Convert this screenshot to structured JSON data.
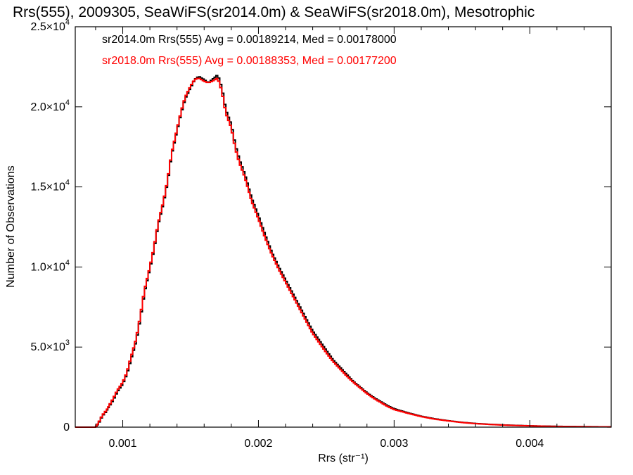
{
  "chart_data": {
    "type": "line",
    "title": "Rrs(555), 2009305, SeaWiFS(sr2014.0m) & SeaWiFS(sr2018.0m), Mesotrophic",
    "xlabel": "Rrs (str⁻¹)",
    "ylabel": "Number of Observations",
    "xlim": [
      0.00065,
      0.0046
    ],
    "ylim": [
      0,
      25000
    ],
    "x_ticks": [
      0.001,
      0.002,
      0.003,
      0.004
    ],
    "x_tick_labels": [
      "0.001",
      "0.002",
      "0.003",
      "0.004"
    ],
    "y_ticks": [
      0,
      5000,
      10000,
      15000,
      20000,
      25000
    ],
    "y_tick_labels": [
      {
        "mantissa": "0",
        "exp": ""
      },
      {
        "mantissa": "5.0×10",
        "exp": "3"
      },
      {
        "mantissa": "1.0×10",
        "exp": "4"
      },
      {
        "mantissa": "1.5×10",
        "exp": "4"
      },
      {
        "mantissa": "2.0×10",
        "exp": "4"
      },
      {
        "mantissa": "2.5×10",
        "exp": "4"
      }
    ],
    "grid": false,
    "legend_position": "top-left",
    "series": [
      {
        "name": "sr2014.0m",
        "color": "#000000",
        "legend_text": "sr2014.0m Rrs(555) Avg = 0.00189214, Med = 0.00178000",
        "x": [
          0.00065,
          0.0008,
          0.00082,
          0.00085,
          0.00088,
          0.0009,
          0.00093,
          0.00096,
          0.001,
          0.00103,
          0.00106,
          0.0011,
          0.00113,
          0.00116,
          0.0012,
          0.00123,
          0.00126,
          0.0013,
          0.00133,
          0.00136,
          0.0014,
          0.00143,
          0.00146,
          0.0015,
          0.00153,
          0.00156,
          0.0016,
          0.00163,
          0.00166,
          0.0017,
          0.00173,
          0.00176,
          0.0018,
          0.00183,
          0.00186,
          0.0019,
          0.00195,
          0.002,
          0.00205,
          0.0021,
          0.00215,
          0.0022,
          0.00225,
          0.0023,
          0.00235,
          0.0024,
          0.00245,
          0.0025,
          0.00255,
          0.0026,
          0.00265,
          0.0027,
          0.00275,
          0.0028,
          0.00285,
          0.0029,
          0.00295,
          0.003,
          0.0031,
          0.0032,
          0.0033,
          0.0034,
          0.0035,
          0.0036,
          0.0037,
          0.0038,
          0.0039,
          0.004,
          0.0041,
          0.0042,
          0.0043,
          0.0044,
          0.0045,
          0.0046
        ],
        "y": [
          0,
          0,
          200,
          700,
          1000,
          1300,
          1700,
          2200,
          2700,
          3300,
          4200,
          5400,
          6800,
          8400,
          9900,
          11100,
          12600,
          14000,
          15300,
          17000,
          18500,
          19600,
          20500,
          21200,
          21700,
          21900,
          21700,
          21500,
          21700,
          22000,
          21200,
          19800,
          18900,
          17600,
          16700,
          15800,
          14300,
          13200,
          12000,
          10900,
          10000,
          9200,
          8400,
          7600,
          6800,
          6000,
          5400,
          4800,
          4200,
          3750,
          3300,
          2850,
          2500,
          2150,
          1850,
          1600,
          1350,
          1150,
          900,
          680,
          520,
          400,
          300,
          230,
          180,
          140,
          110,
          85,
          65,
          50,
          40,
          30,
          25,
          20
        ]
      },
      {
        "name": "sr2018.0m",
        "color": "#ff0000",
        "legend_text": "sr2018.0m Rrs(555) Avg = 0.00188353, Med = 0.00177200",
        "x": [
          0.00065,
          0.0008,
          0.00082,
          0.00085,
          0.00088,
          0.0009,
          0.00093,
          0.00096,
          0.001,
          0.00103,
          0.00106,
          0.0011,
          0.00113,
          0.00116,
          0.0012,
          0.00123,
          0.00126,
          0.0013,
          0.00133,
          0.00136,
          0.0014,
          0.00143,
          0.00146,
          0.0015,
          0.00153,
          0.00156,
          0.0016,
          0.00163,
          0.00166,
          0.0017,
          0.00173,
          0.00176,
          0.0018,
          0.00183,
          0.00186,
          0.0019,
          0.00195,
          0.002,
          0.00205,
          0.0021,
          0.00215,
          0.0022,
          0.00225,
          0.0023,
          0.00235,
          0.0024,
          0.00245,
          0.0025,
          0.00255,
          0.0026,
          0.00265,
          0.0027,
          0.00275,
          0.0028,
          0.00285,
          0.0029,
          0.00295,
          0.003,
          0.0031,
          0.0032,
          0.0033,
          0.0034,
          0.0035,
          0.0036,
          0.0037,
          0.0038,
          0.0039,
          0.004,
          0.0041,
          0.0042,
          0.0043,
          0.0044,
          0.0045,
          0.0046
        ],
        "y": [
          0,
          0,
          250,
          750,
          1050,
          1350,
          1800,
          2300,
          2800,
          3400,
          4350,
          5550,
          6950,
          8550,
          10000,
          11200,
          12700,
          14100,
          15400,
          17100,
          18600,
          19700,
          20600,
          21300,
          21700,
          21800,
          21600,
          21500,
          21600,
          21800,
          21000,
          19600,
          18700,
          17400,
          16500,
          15600,
          14100,
          13000,
          11800,
          10750,
          9850,
          9050,
          8250,
          7450,
          6650,
          5850,
          5250,
          4650,
          4100,
          3650,
          3200,
          2800,
          2450,
          2100,
          1800,
          1550,
          1300,
          1100,
          870,
          660,
          500,
          390,
          290,
          220,
          170,
          130,
          100,
          80,
          60,
          45,
          35,
          28,
          22,
          18
        ]
      }
    ]
  }
}
